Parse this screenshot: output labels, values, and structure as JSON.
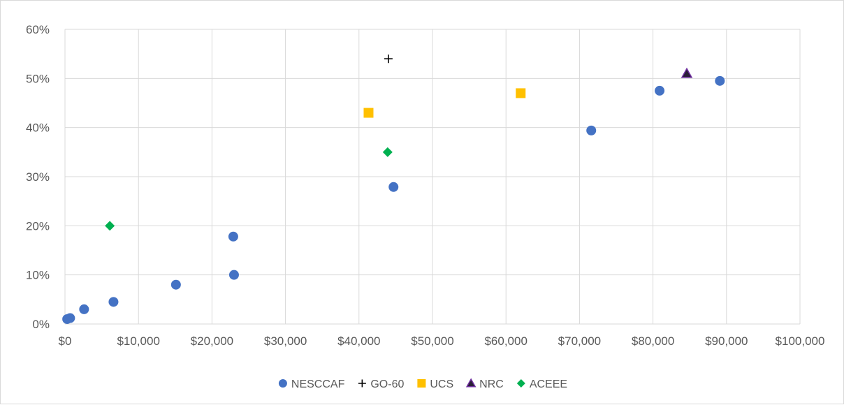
{
  "chart_data": {
    "type": "scatter",
    "title": "",
    "xlabel": "",
    "ylabel": "",
    "xlim": [
      0,
      100000
    ],
    "ylim": [
      0,
      0.6
    ],
    "x_ticks": [
      {
        "value": 0,
        "label": "$0"
      },
      {
        "value": 10000,
        "label": "$10,000"
      },
      {
        "value": 20000,
        "label": "$20,000"
      },
      {
        "value": 30000,
        "label": "$30,000"
      },
      {
        "value": 40000,
        "label": "$40,000"
      },
      {
        "value": 50000,
        "label": "$50,000"
      },
      {
        "value": 60000,
        "label": "$60,000"
      },
      {
        "value": 70000,
        "label": "$70,000"
      },
      {
        "value": 80000,
        "label": "$80,000"
      },
      {
        "value": 90000,
        "label": "$90,000"
      },
      {
        "value": 100000,
        "label": "$100,000"
      }
    ],
    "y_ticks": [
      {
        "value": 0,
        "label": "0%"
      },
      {
        "value": 0.1,
        "label": "10%"
      },
      {
        "value": 0.2,
        "label": "20%"
      },
      {
        "value": 0.3,
        "label": "30%"
      },
      {
        "value": 0.4,
        "label": "40%"
      },
      {
        "value": 0.5,
        "label": "50%"
      },
      {
        "value": 0.6,
        "label": "60%"
      }
    ],
    "grid": true,
    "legend_position": "bottom",
    "series": [
      {
        "name": "NESCCAF",
        "marker": "circle",
        "color": "#4472c4",
        "points": [
          [
            300,
            0.01
          ],
          [
            700,
            0.012
          ],
          [
            2600,
            0.03
          ],
          [
            6600,
            0.045
          ],
          [
            15100,
            0.08
          ],
          [
            22900,
            0.178
          ],
          [
            23000,
            0.1
          ],
          [
            44700,
            0.279
          ],
          [
            71600,
            0.394
          ],
          [
            80900,
            0.475
          ],
          [
            89100,
            0.495
          ]
        ]
      },
      {
        "name": "GO-60",
        "marker": "plus",
        "color": "#000000",
        "points": [
          [
            44000,
            0.54
          ]
        ]
      },
      {
        "name": "UCS",
        "marker": "square",
        "color": "#ffc000",
        "points": [
          [
            41300,
            0.43
          ],
          [
            62000,
            0.47
          ]
        ]
      },
      {
        "name": "NRC",
        "marker": "triangle",
        "color": "#2a1e37",
        "edge_color": "#7030a0",
        "points": [
          [
            84600,
            0.51
          ]
        ]
      },
      {
        "name": "ACEEE",
        "marker": "diamond",
        "color": "#00b050",
        "points": [
          [
            6100,
            0.2
          ],
          [
            43900,
            0.35
          ]
        ]
      }
    ]
  }
}
